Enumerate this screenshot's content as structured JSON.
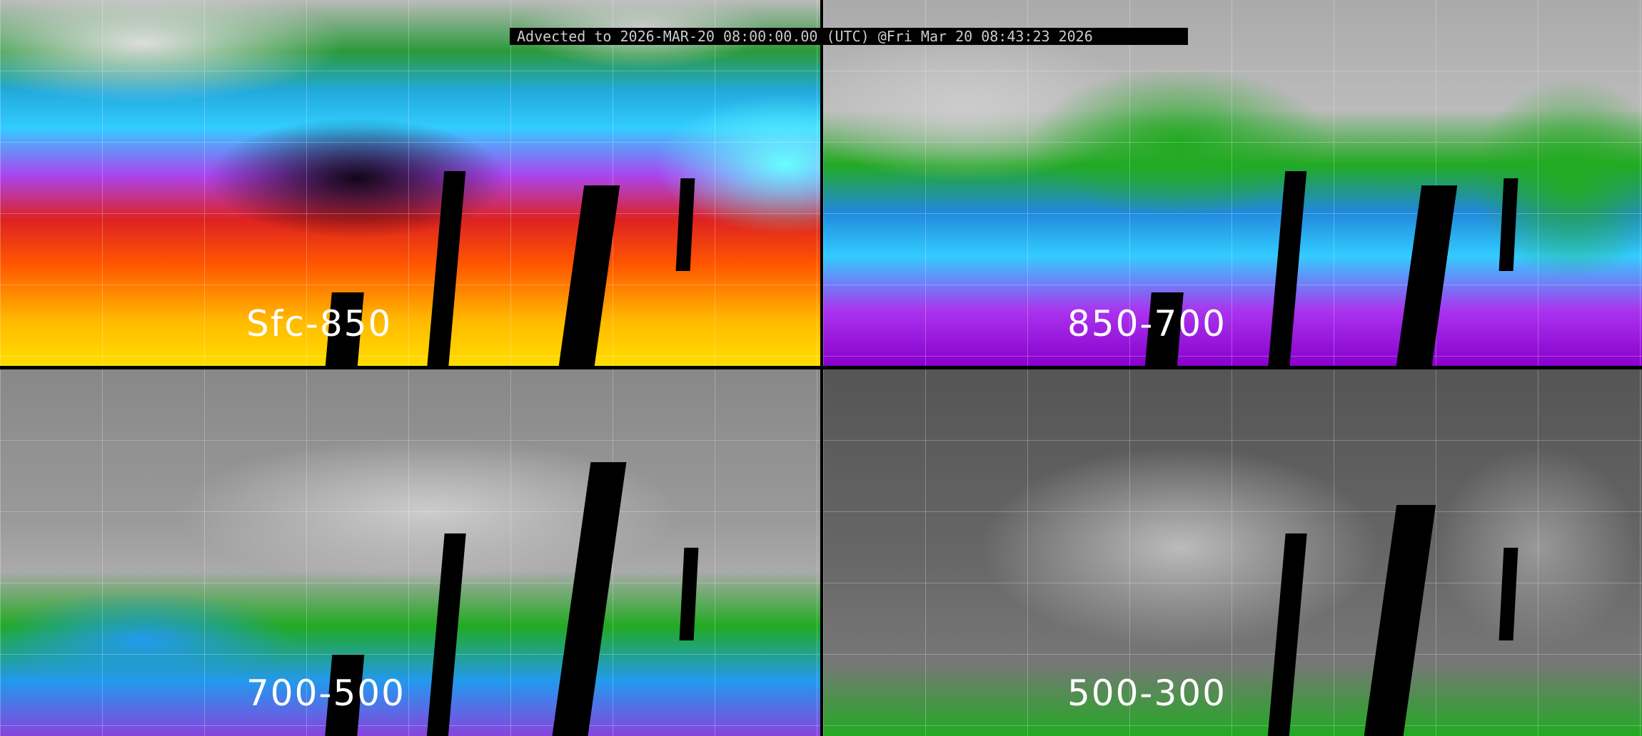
{
  "header": {
    "title": "Advected to 2026-MAR-20 08:00:00.00 (UTC) @Fri Mar 20 08:43:23 2026"
  },
  "panels": [
    {
      "label": "Sfc-850"
    },
    {
      "label": "850-700"
    },
    {
      "label": "700-500"
    },
    {
      "label": "500-300"
    }
  ],
  "colors": {
    "divider": "#000000",
    "grid": "#ffffff",
    "label": "#ffffff"
  }
}
